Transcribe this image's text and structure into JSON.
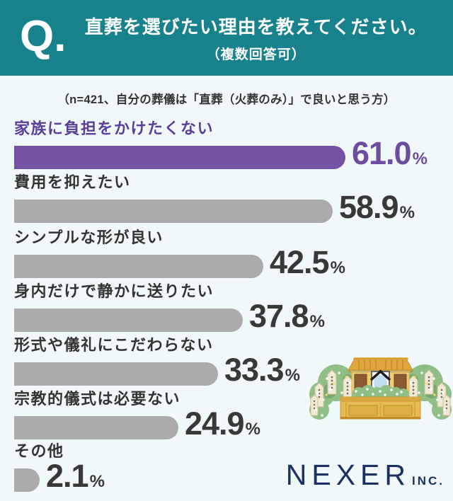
{
  "header": {
    "q_label": "Q.",
    "title": "直葬を選びたい理由を教えてください。",
    "subtitle": "（複数回答可）"
  },
  "note": "（n=421、自分の葬儀は「直葬（火葬のみ）」で良いと思う方）",
  "chart_data": {
    "type": "bar",
    "orientation": "horizontal",
    "title": "直葬を選びたい理由",
    "categories": [
      "家族に負担をかけたくない",
      "費用を抑えたい",
      "シンプルな形が良い",
      "身内だけで静かに送りたい",
      "形式や儀礼にこだわらない",
      "宗教的儀式は必要ない",
      "その他"
    ],
    "values": [
      61.0,
      58.9,
      42.5,
      37.8,
      33.3,
      24.9,
      2.1
    ],
    "value_labels": [
      "61.0",
      "58.9",
      "42.5",
      "37.8",
      "33.3",
      "24.9",
      "2.1"
    ],
    "unit": "%",
    "highlight_index": 0,
    "xlim": [
      0,
      65
    ],
    "grid": false,
    "legend": false,
    "colors": {
      "highlight_bar": "#7553A4",
      "highlight_label": "#5A3E9A",
      "highlight_value": "#6D4E9E",
      "default_bar": "#ABABAB",
      "default_label": "#333333",
      "default_value": "#383838"
    }
  },
  "footer": {
    "brand": "NEXER",
    "brand_suffix": "INC."
  },
  "illustration": {
    "name": "funeral-altar-illustration",
    "description": "祭壇のイラスト"
  },
  "colors": {
    "header_background": "#17828B",
    "page_background": "#F1F8FA",
    "header_text": "#FFFFFF",
    "logo_navy": "#1B3160"
  }
}
